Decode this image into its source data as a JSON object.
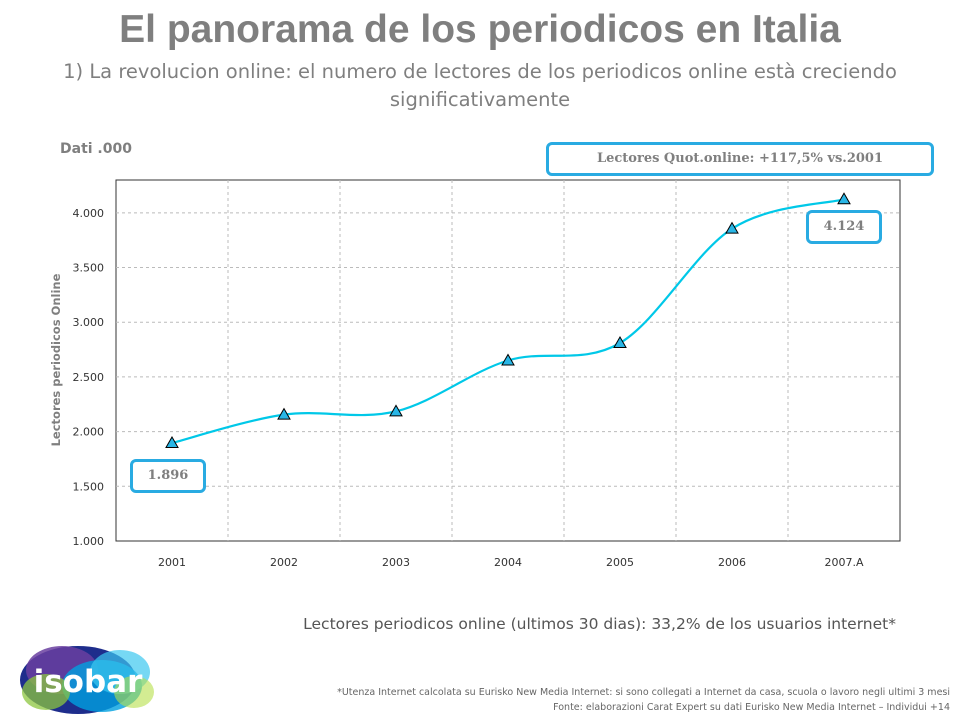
{
  "header": {
    "title": "El panorama de los periodicos en Italia",
    "subtitle": "1) La revolucion online: el numero de lectores de los  periodicos  online està creciendo significativamente"
  },
  "units_label": "Dati .000",
  "callouts": {
    "growth": "Lectores Quot.online: +117,5% vs.2001",
    "first_value": "1.896",
    "last_value": "4.124"
  },
  "chart_data": {
    "type": "line",
    "x": [
      "2001",
      "2002",
      "2003",
      "2004",
      "2005",
      "2006",
      "2007.A"
    ],
    "series": [
      {
        "values": [
          1896,
          2155,
          2185,
          2650,
          2810,
          3855,
          4124
        ]
      }
    ],
    "ylabel": "Lectores periodicos  Online",
    "xlabel": "",
    "ylim": [
      1000,
      4300
    ],
    "yticks": [
      1000,
      1500,
      2000,
      2500,
      3000,
      3500,
      4000
    ],
    "ytick_labels": [
      "1.000",
      "1.500",
      "2.000",
      "2.500",
      "3.000",
      "3.500",
      "4.000"
    ],
    "grid": true,
    "line_color": "#00c8e8",
    "marker": "triangle",
    "marker_color": "#29b6e6"
  },
  "notes": {
    "readers_share": "Lectores periodicos  online (ultimos 30 dias): 33,2% de los usuarios internet*",
    "footnote_1": "*Utenza Internet calcolata su Eurisko New Media Internet: si sono collegati a Internet da casa, scuola o lavoro negli ultimi 3 mesi",
    "footnote_2": "Fonte: elaborazioni Carat Expert su dati Eurisko New Media Internet – Individui +14"
  },
  "logo": {
    "text": "isobar"
  }
}
